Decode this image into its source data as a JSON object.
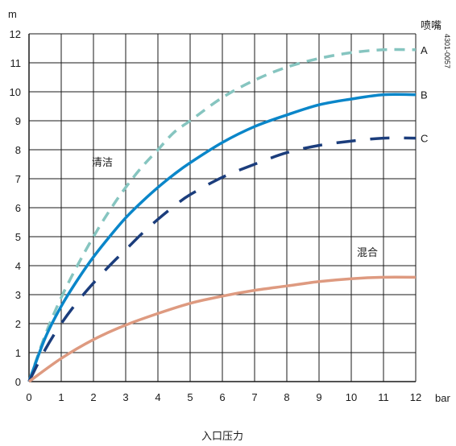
{
  "chart_data": {
    "type": "line",
    "xlabel": "入口压力",
    "x_unit": "bar",
    "y_unit": "m",
    "xlim": [
      0,
      12
    ],
    "ylim": [
      0,
      12
    ],
    "x_ticks": [
      0,
      1,
      2,
      3,
      4,
      5,
      6,
      7,
      8,
      9,
      10,
      11,
      12
    ],
    "y_ticks": [
      0,
      1,
      2,
      3,
      4,
      5,
      6,
      7,
      8,
      9,
      10,
      11,
      12
    ],
    "grid": true,
    "legend_title": "喷嘴",
    "figure_code": "4301-0057",
    "annotations": [
      {
        "text": "清洁",
        "x": 2.4,
        "y": 7.4
      },
      {
        "text": "混合",
        "x": 10.2,
        "y": 4.5
      }
    ],
    "colors": {
      "A": "#86c5c0",
      "B": "#0a86c9",
      "C": "#1b3d7c",
      "mix": "#de9a80",
      "grid": "#1a1a1a"
    },
    "series": [
      {
        "name": "A",
        "x": [
          0,
          0.5,
          1,
          1.5,
          2,
          2.5,
          3,
          3.5,
          4,
          4.5,
          5,
          6,
          7,
          8,
          9,
          10,
          11,
          12
        ],
        "y": [
          0,
          1.6,
          2.9,
          4.0,
          5.0,
          5.9,
          6.7,
          7.4,
          8.0,
          8.6,
          9.0,
          9.8,
          10.4,
          10.85,
          11.15,
          11.35,
          11.45,
          11.45
        ]
      },
      {
        "name": "B",
        "x": [
          0,
          0.5,
          1,
          1.5,
          2,
          2.5,
          3,
          3.5,
          4,
          4.5,
          5,
          6,
          7,
          8,
          9,
          10,
          11,
          12
        ],
        "y": [
          0,
          1.5,
          2.6,
          3.5,
          4.3,
          5.0,
          5.65,
          6.2,
          6.7,
          7.15,
          7.55,
          8.25,
          8.8,
          9.2,
          9.55,
          9.75,
          9.9,
          9.9
        ]
      },
      {
        "name": "C",
        "x": [
          0,
          0.5,
          1,
          1.5,
          2,
          2.5,
          3,
          3.5,
          4,
          4.5,
          5,
          6,
          7,
          8,
          9,
          10,
          11,
          12
        ],
        "y": [
          0,
          1.1,
          2.0,
          2.75,
          3.4,
          4.0,
          4.55,
          5.1,
          5.6,
          6.05,
          6.45,
          7.05,
          7.5,
          7.9,
          8.15,
          8.3,
          8.4,
          8.4
        ]
      },
      {
        "name": "mix",
        "x": [
          0,
          1,
          2,
          3,
          4,
          5,
          6,
          7,
          8,
          9,
          10,
          11,
          12
        ],
        "y": [
          0,
          0.8,
          1.45,
          1.95,
          2.35,
          2.7,
          2.95,
          3.15,
          3.3,
          3.45,
          3.55,
          3.6,
          3.6
        ]
      }
    ]
  }
}
